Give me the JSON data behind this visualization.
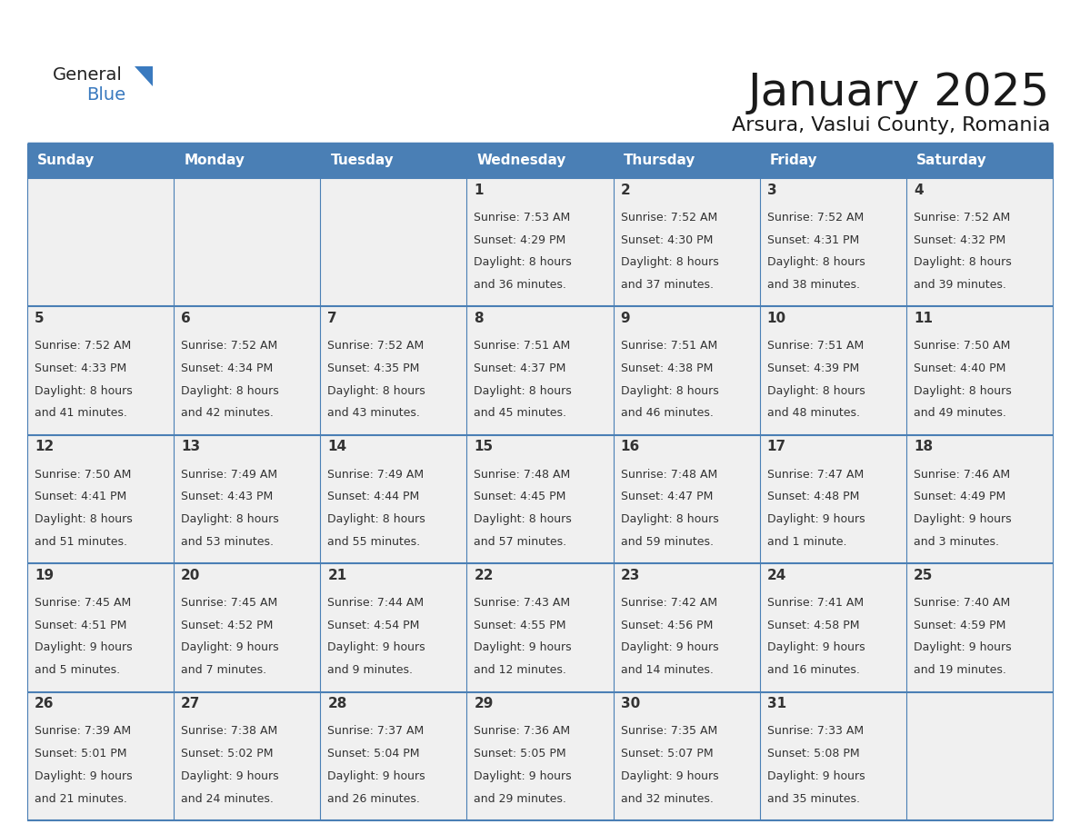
{
  "title": "January 2025",
  "subtitle": "Arsura, Vaslui County, Romania",
  "header_bg_color": "#4a7fb5",
  "header_text_color": "#ffffff",
  "cell_bg_color": "#f0f0f0",
  "cell_border_color": "#4a7fb5",
  "text_color": "#333333",
  "days_of_week": [
    "Sunday",
    "Monday",
    "Tuesday",
    "Wednesday",
    "Thursday",
    "Friday",
    "Saturday"
  ],
  "calendar_data": [
    [
      {
        "day": "",
        "sunrise": "",
        "sunset": "",
        "daylight": ""
      },
      {
        "day": "",
        "sunrise": "",
        "sunset": "",
        "daylight": ""
      },
      {
        "day": "",
        "sunrise": "",
        "sunset": "",
        "daylight": ""
      },
      {
        "day": "1",
        "sunrise": "7:53 AM",
        "sunset": "4:29 PM",
        "daylight": "8 hours and 36 minutes."
      },
      {
        "day": "2",
        "sunrise": "7:52 AM",
        "sunset": "4:30 PM",
        "daylight": "8 hours and 37 minutes."
      },
      {
        "day": "3",
        "sunrise": "7:52 AM",
        "sunset": "4:31 PM",
        "daylight": "8 hours and 38 minutes."
      },
      {
        "day": "4",
        "sunrise": "7:52 AM",
        "sunset": "4:32 PM",
        "daylight": "8 hours and 39 minutes."
      }
    ],
    [
      {
        "day": "5",
        "sunrise": "7:52 AM",
        "sunset": "4:33 PM",
        "daylight": "8 hours and 41 minutes."
      },
      {
        "day": "6",
        "sunrise": "7:52 AM",
        "sunset": "4:34 PM",
        "daylight": "8 hours and 42 minutes."
      },
      {
        "day": "7",
        "sunrise": "7:52 AM",
        "sunset": "4:35 PM",
        "daylight": "8 hours and 43 minutes."
      },
      {
        "day": "8",
        "sunrise": "7:51 AM",
        "sunset": "4:37 PM",
        "daylight": "8 hours and 45 minutes."
      },
      {
        "day": "9",
        "sunrise": "7:51 AM",
        "sunset": "4:38 PM",
        "daylight": "8 hours and 46 minutes."
      },
      {
        "day": "10",
        "sunrise": "7:51 AM",
        "sunset": "4:39 PM",
        "daylight": "8 hours and 48 minutes."
      },
      {
        "day": "11",
        "sunrise": "7:50 AM",
        "sunset": "4:40 PM",
        "daylight": "8 hours and 49 minutes."
      }
    ],
    [
      {
        "day": "12",
        "sunrise": "7:50 AM",
        "sunset": "4:41 PM",
        "daylight": "8 hours and 51 minutes."
      },
      {
        "day": "13",
        "sunrise": "7:49 AM",
        "sunset": "4:43 PM",
        "daylight": "8 hours and 53 minutes."
      },
      {
        "day": "14",
        "sunrise": "7:49 AM",
        "sunset": "4:44 PM",
        "daylight": "8 hours and 55 minutes."
      },
      {
        "day": "15",
        "sunrise": "7:48 AM",
        "sunset": "4:45 PM",
        "daylight": "8 hours and 57 minutes."
      },
      {
        "day": "16",
        "sunrise": "7:48 AM",
        "sunset": "4:47 PM",
        "daylight": "8 hours and 59 minutes."
      },
      {
        "day": "17",
        "sunrise": "7:47 AM",
        "sunset": "4:48 PM",
        "daylight": "9 hours and 1 minute."
      },
      {
        "day": "18",
        "sunrise": "7:46 AM",
        "sunset": "4:49 PM",
        "daylight": "9 hours and 3 minutes."
      }
    ],
    [
      {
        "day": "19",
        "sunrise": "7:45 AM",
        "sunset": "4:51 PM",
        "daylight": "9 hours and 5 minutes."
      },
      {
        "day": "20",
        "sunrise": "7:45 AM",
        "sunset": "4:52 PM",
        "daylight": "9 hours and 7 minutes."
      },
      {
        "day": "21",
        "sunrise": "7:44 AM",
        "sunset": "4:54 PM",
        "daylight": "9 hours and 9 minutes."
      },
      {
        "day": "22",
        "sunrise": "7:43 AM",
        "sunset": "4:55 PM",
        "daylight": "9 hours and 12 minutes."
      },
      {
        "day": "23",
        "sunrise": "7:42 AM",
        "sunset": "4:56 PM",
        "daylight": "9 hours and 14 minutes."
      },
      {
        "day": "24",
        "sunrise": "7:41 AM",
        "sunset": "4:58 PM",
        "daylight": "9 hours and 16 minutes."
      },
      {
        "day": "25",
        "sunrise": "7:40 AM",
        "sunset": "4:59 PM",
        "daylight": "9 hours and 19 minutes."
      }
    ],
    [
      {
        "day": "26",
        "sunrise": "7:39 AM",
        "sunset": "5:01 PM",
        "daylight": "9 hours and 21 minutes."
      },
      {
        "day": "27",
        "sunrise": "7:38 AM",
        "sunset": "5:02 PM",
        "daylight": "9 hours and 24 minutes."
      },
      {
        "day": "28",
        "sunrise": "7:37 AM",
        "sunset": "5:04 PM",
        "daylight": "9 hours and 26 minutes."
      },
      {
        "day": "29",
        "sunrise": "7:36 AM",
        "sunset": "5:05 PM",
        "daylight": "9 hours and 29 minutes."
      },
      {
        "day": "30",
        "sunrise": "7:35 AM",
        "sunset": "5:07 PM",
        "daylight": "9 hours and 32 minutes."
      },
      {
        "day": "31",
        "sunrise": "7:33 AM",
        "sunset": "5:08 PM",
        "daylight": "9 hours and 35 minutes."
      },
      {
        "day": "",
        "sunrise": "",
        "sunset": "",
        "daylight": ""
      }
    ]
  ],
  "logo_triangle_color": "#3a7abf",
  "logo_blue_color": "#3a7abf",
  "logo_general_color": "#222222",
  "title_color": "#1a1a1a",
  "subtitle_color": "#1a1a1a",
  "title_fontsize": 36,
  "subtitle_fontsize": 16,
  "header_fontsize": 11,
  "day_number_fontsize": 11,
  "cell_text_fontsize": 9
}
